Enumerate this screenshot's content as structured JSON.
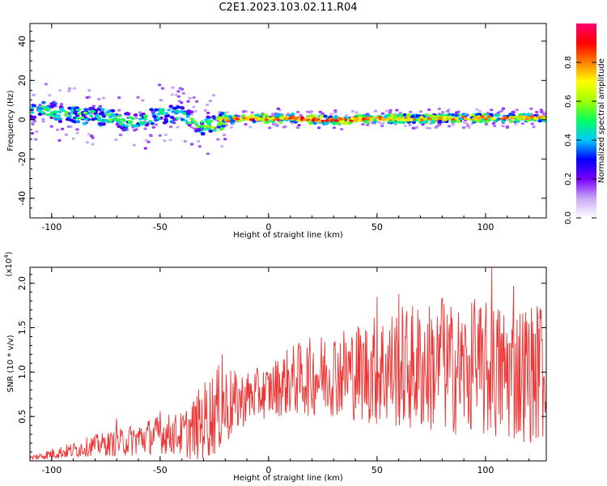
{
  "title": "C2E1.2023.103.02.11.R04",
  "chart_data": [
    {
      "type": "heatmap",
      "title": "C2E1.2023.103.02.11.R04",
      "xlabel": "Height of straight line (km)",
      "ylabel": "Frequency (Hz)",
      "xlim": [
        -110,
        128
      ],
      "ylim": [
        -50,
        49
      ],
      "xticks": [
        -100,
        -50,
        0,
        50,
        100
      ],
      "yticks": [
        -40,
        -20,
        0,
        20,
        40
      ],
      "grid": false,
      "colorbar": {
        "label": "Normalized spectral amplitude",
        "range": [
          0,
          1
        ],
        "ticks": [
          "0.0",
          "0.2",
          "0.4",
          "0.6",
          "0.8"
        ],
        "colors": [
          "#ffffff",
          "#c9a8f5",
          "#7a00ff",
          "#0000ff",
          "#00c8ff",
          "#00ff60",
          "#a0ff00",
          "#ffff00",
          "#ff8000",
          "#ff0000",
          "#ff0070"
        ]
      },
      "ridge": [
        {
          "x": -108,
          "f": 5,
          "amp": 0.45
        },
        {
          "x": -100,
          "f": 4,
          "amp": 0.55
        },
        {
          "x": -90,
          "f": 3,
          "amp": 0.5
        },
        {
          "x": -80,
          "f": 2,
          "amp": 0.55
        },
        {
          "x": -70,
          "f": 0,
          "amp": 0.5
        },
        {
          "x": -60,
          "f": -2,
          "amp": 0.5
        },
        {
          "x": -50,
          "f": 3,
          "amp": 0.45
        },
        {
          "x": -40,
          "f": 2,
          "amp": 0.5
        },
        {
          "x": -30,
          "f": -3,
          "amp": 0.55
        },
        {
          "x": -25,
          "f": -2,
          "amp": 0.6
        },
        {
          "x": -20,
          "f": 0,
          "amp": 0.75
        },
        {
          "x": -10,
          "f": 0.5,
          "amp": 0.85
        },
        {
          "x": 0,
          "f": 0.5,
          "amp": 0.8
        },
        {
          "x": 10,
          "f": 1,
          "amp": 0.85
        },
        {
          "x": 20,
          "f": 0,
          "amp": 0.9
        },
        {
          "x": 30,
          "f": 0,
          "amp": 0.85
        },
        {
          "x": 50,
          "f": 0.5,
          "amp": 0.8
        },
        {
          "x": 75,
          "f": 0.5,
          "amp": 0.75
        },
        {
          "x": 100,
          "f": 1,
          "amp": 0.8
        },
        {
          "x": 128,
          "f": 1,
          "amp": 0.75
        }
      ]
    },
    {
      "type": "line",
      "xlabel": "Height of straight line (km)",
      "ylabel": "SNR (10 * v/v)",
      "y_scale_label": "(x10",
      "y_scale_exp": "4",
      "y_scale_close": ")",
      "xlim": [
        -110,
        128
      ],
      "ylim": [
        0,
        2.18
      ],
      "xticks": [
        -100,
        -50,
        0,
        50,
        100
      ],
      "yticks": [
        0.5,
        1.0,
        1.5,
        2.0
      ],
      "series": [
        {
          "color": "#ee3333",
          "envelope_x": [
            -110,
            -100,
            -90,
            -80,
            -70,
            -60,
            -50,
            -40,
            -35,
            -30,
            -25,
            -20,
            -15,
            -10,
            -5,
            0,
            5,
            10,
            20,
            30,
            40,
            50,
            60,
            70,
            80,
            90,
            100,
            110,
            120,
            128
          ],
          "envelope_y": [
            0.03,
            0.08,
            0.12,
            0.18,
            0.2,
            0.25,
            0.3,
            0.3,
            0.35,
            0.45,
            0.55,
            0.62,
            0.65,
            0.72,
            0.75,
            0.78,
            0.85,
            0.9,
            0.95,
            1.0,
            1.0,
            1.02,
            1.05,
            1.05,
            1.05,
            1.02,
            1.0,
            1.0,
            1.0,
            1.0
          ],
          "noise": [
            0.03,
            0.06,
            0.09,
            0.12,
            0.15,
            0.2,
            0.22,
            0.25,
            0.35,
            0.45,
            0.5,
            0.5,
            0.35,
            0.3,
            0.3,
            0.3,
            0.35,
            0.4,
            0.45,
            0.5,
            0.55,
            0.65,
            0.7,
            0.75,
            0.75,
            0.75,
            0.8,
            0.8,
            0.8,
            0.8
          ],
          "peaks": [
            {
              "x": -70,
              "y": 0.48
            },
            {
              "x": -50,
              "y": 0.56
            },
            {
              "x": -21.5,
              "y": 1.2
            },
            {
              "x": 50,
              "y": 1.85
            },
            {
              "x": 60,
              "y": 1.88
            },
            {
              "x": 80,
              "y": 1.83
            },
            {
              "x": 95,
              "y": 1.82
            },
            {
              "x": 103,
              "y": 2.18
            },
            {
              "x": 113,
              "y": 1.97
            },
            {
              "x": 125,
              "y": 1.72
            }
          ]
        }
      ]
    }
  ]
}
